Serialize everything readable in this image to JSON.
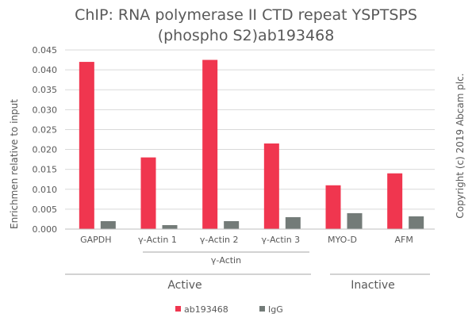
{
  "chart_data": {
    "type": "bar",
    "title_line1": "ChIP: RNA polymerase II CTD repeat YSPTSPS",
    "title_line2": "(phospho S2)ab193468",
    "ylabel": "Enrichmen relative to input",
    "xlabel": "",
    "ylim": [
      0,
      0.045
    ],
    "yticks": [
      "0.000",
      "0.005",
      "0.010",
      "0.015",
      "0.020",
      "0.025",
      "0.030",
      "0.035",
      "0.040",
      "0.045"
    ],
    "categories": [
      "GAPDH",
      "γ-Actin 1",
      "γ-Actin 2",
      "γ-Actin 3",
      "MYO-D",
      "AFM"
    ],
    "series": [
      {
        "name": "ab193468",
        "color": "#f0364f",
        "values": [
          0.042,
          0.018,
          0.0425,
          0.0215,
          0.011,
          0.014
        ]
      },
      {
        "name": "IgG",
        "color": "#737b78",
        "values": [
          0.002,
          0.001,
          0.002,
          0.003,
          0.004,
          0.0032
        ]
      }
    ],
    "group_labels": {
      "actin": "γ-Actin",
      "active": "Active",
      "inactive": "Inactive"
    },
    "copyright": "Copyright (c) 2019 Abcam plc.",
    "legend_position": "bottom"
  }
}
